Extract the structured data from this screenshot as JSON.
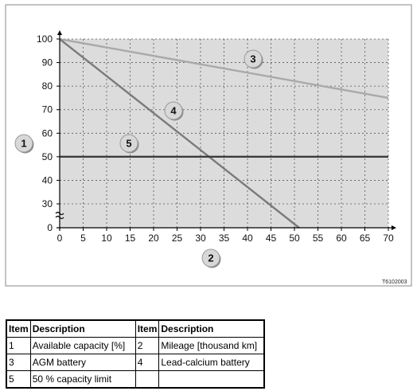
{
  "chart_data": {
    "type": "line",
    "x_ticks": [
      "0",
      "5",
      "10",
      "15",
      "20",
      "25",
      "30",
      "35",
      "40",
      "45",
      "50",
      "55",
      "60",
      "65",
      "70"
    ],
    "y_ticks": [
      "0",
      "30",
      "40",
      "50",
      "60",
      "70",
      "80",
      "90",
      "100"
    ],
    "xlim": [
      0,
      70
    ],
    "ylim": [
      0,
      100
    ],
    "y_axis_break": "between 0 and 30",
    "grid": true,
    "series": [
      {
        "key": "3",
        "x": [
          0,
          70
        ],
        "y": [
          100,
          75
        ],
        "color": "#a9a9a9"
      },
      {
        "key": "4",
        "x": [
          0,
          51
        ],
        "y": [
          100,
          0
        ],
        "color": "#7a7a7a"
      },
      {
        "key": "5",
        "x": [
          0,
          70
        ],
        "y": [
          50,
          50
        ],
        "color": "#3c3c3c"
      }
    ],
    "callouts": [
      "1",
      "2",
      "3",
      "4",
      "5"
    ]
  },
  "figure_ref": "T6102003",
  "legend_table": {
    "headers": [
      "Item",
      "Description",
      "Item",
      "Description"
    ],
    "rows": [
      [
        "1",
        "Available capacity [%]",
        "2",
        "Mileage [thousand km]"
      ],
      [
        "3",
        "AGM battery",
        "4",
        "Lead-calcium battery"
      ],
      [
        "5",
        "50 % capacity limit",
        "",
        ""
      ]
    ]
  },
  "colors": {
    "plot_background": "#dcdcdc",
    "grid": "#555555",
    "callout_fill": "#d8d8d8"
  }
}
